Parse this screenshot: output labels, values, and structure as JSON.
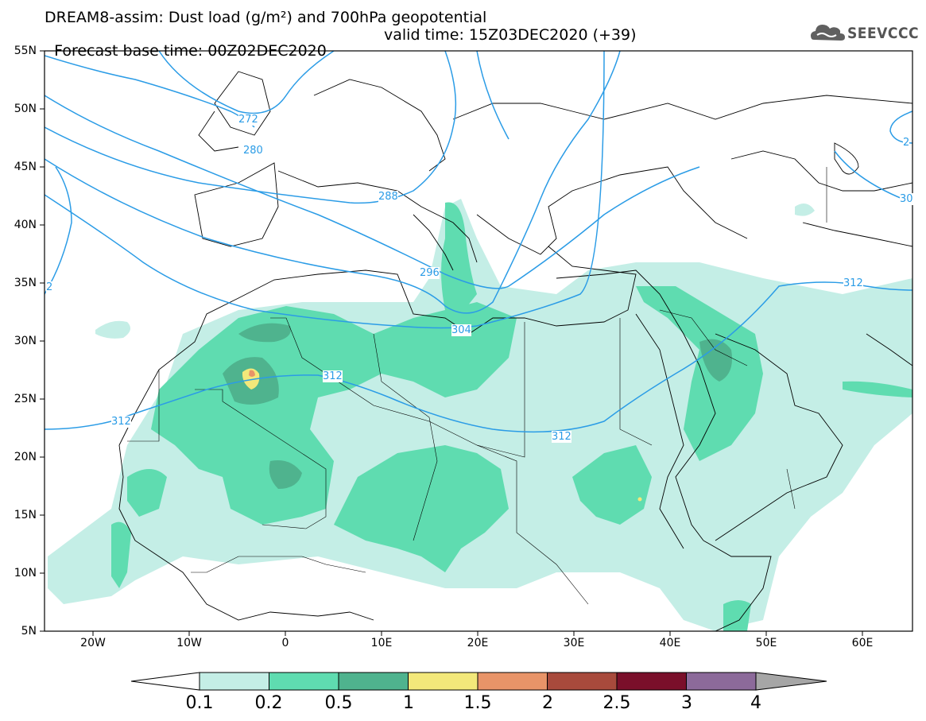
{
  "header": {
    "title_line1": "DREAM8-assim: Dust load (g/m²) and 700hPa geopotential",
    "title_line2_left": "Forecast base time: 00Z02DEC2020",
    "title_line2_right": "valid time: 15Z03DEC2020 (+39)",
    "logo_text": "SEEVCCC"
  },
  "map": {
    "extent": {
      "lon_min": -25,
      "lon_max": 65,
      "lat_min": 5,
      "lat_max": 55
    },
    "lat_labels": [
      "55N",
      "50N",
      "45N",
      "40N",
      "35N",
      "30N",
      "25N",
      "20N",
      "15N",
      "10N",
      "5N"
    ],
    "lon_labels": [
      "20W",
      "10W",
      "0",
      "10E",
      "20E",
      "30E",
      "40E",
      "50E",
      "60E"
    ],
    "contour_labels": [
      "272",
      "280",
      "288",
      "296",
      "304",
      "312",
      "312",
      "312",
      "312",
      "2",
      "30",
      "2"
    ],
    "colors": {
      "dust_0_1": "#c4eee6",
      "dust_0_2": "#5fdcb0",
      "dust_0_5": "#4fb38e",
      "dust_1": "#f3e87a",
      "dust_1_5": "#e89468",
      "contour": "#2b9ce6",
      "coast": "#000000"
    }
  },
  "legend": {
    "labels": [
      "0.1",
      "0.2",
      "0.5",
      "1",
      "1.5",
      "2",
      "2.5",
      "3",
      "4"
    ],
    "colors": [
      "#ffffff",
      "#c4eee6",
      "#5fdcb0",
      "#4fb38e",
      "#f3e87a",
      "#e89468",
      "#a84a3c",
      "#7a0f2a",
      "#8c6a9a",
      "#a6a6a6"
    ]
  }
}
